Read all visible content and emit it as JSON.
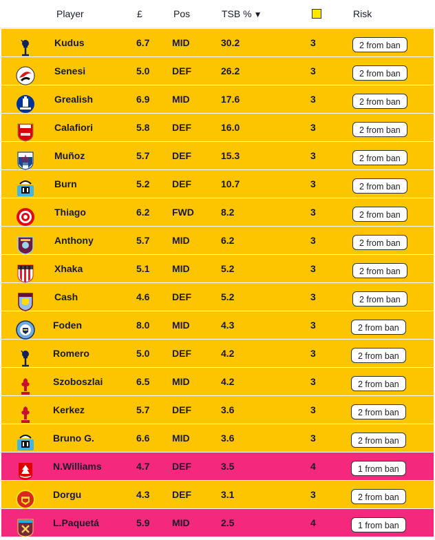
{
  "header": {
    "player": "Player",
    "price": "£",
    "pos": "Pos",
    "tsb": "TSB %",
    "sort_arrow": "▼",
    "risk": "Risk"
  },
  "colors": {
    "yellow_row": "#fdc400",
    "pink_row": "#f4287c",
    "card_yellow": "#ffe600"
  },
  "rows": [
    {
      "club": "tottenham-crest",
      "name": "Kudus",
      "price": "6.7",
      "pos": "MID",
      "tsb": "30.2",
      "cards": "3",
      "risk": "2 from ban",
      "tone": "yellow"
    },
    {
      "club": "bournemouth-crest",
      "name": "Senesi",
      "price": "5.0",
      "pos": "DEF",
      "tsb": "26.2",
      "cards": "3",
      "risk": "2 from ban",
      "tone": "yellow"
    },
    {
      "club": "everton-crest",
      "name": "Grealish",
      "price": "6.9",
      "pos": "MID",
      "tsb": "17.6",
      "cards": "3",
      "risk": "2 from ban",
      "tone": "yellow"
    },
    {
      "club": "arsenal-crest",
      "name": "Calafiori",
      "price": "5.8",
      "pos": "DEF",
      "tsb": "16.0",
      "cards": "3",
      "risk": "2 from ban",
      "tone": "yellow"
    },
    {
      "club": "crystal-palace-crest",
      "name": "Muñoz",
      "price": "5.7",
      "pos": "DEF",
      "tsb": "15.3",
      "cards": "3",
      "risk": "2 from ban",
      "tone": "yellow"
    },
    {
      "club": "newcastle-crest",
      "name": "Burn",
      "price": "5.2",
      "pos": "DEF",
      "tsb": "10.7",
      "cards": "3",
      "risk": "2 from ban",
      "tone": "yellow"
    },
    {
      "club": "brentford-crest",
      "name": "Thiago",
      "price": "6.2",
      "pos": "FWD",
      "tsb": "8.2",
      "cards": "3",
      "risk": "2 from ban",
      "tone": "yellow"
    },
    {
      "club": "burnley-crest",
      "name": "Anthony",
      "price": "5.7",
      "pos": "MID",
      "tsb": "6.2",
      "cards": "3",
      "risk": "2 from ban",
      "tone": "yellow"
    },
    {
      "club": "sunderland-crest",
      "name": "Xhaka",
      "price": "5.1",
      "pos": "MID",
      "tsb": "5.2",
      "cards": "3",
      "risk": "2 from ban",
      "tone": "yellow"
    },
    {
      "club": "aston-villa-crest",
      "name": "Cash",
      "price": "4.6",
      "pos": "DEF",
      "tsb": "5.2",
      "cards": "3",
      "risk": "2 from ban",
      "tone": "yellow"
    },
    {
      "club": "man-city-crest",
      "name": "Foden",
      "price": "8.0",
      "pos": "MID",
      "tsb": "4.3",
      "cards": "3",
      "risk": "2 from ban",
      "tone": "yellow"
    },
    {
      "club": "tottenham-crest",
      "name": "Romero",
      "price": "5.0",
      "pos": "DEF",
      "tsb": "4.2",
      "cards": "3",
      "risk": "2 from ban",
      "tone": "yellow"
    },
    {
      "club": "liverpool-crest",
      "name": "Szoboszlai",
      "price": "6.5",
      "pos": "MID",
      "tsb": "4.2",
      "cards": "3",
      "risk": "2 from ban",
      "tone": "yellow"
    },
    {
      "club": "liverpool-crest",
      "name": "Kerkez",
      "price": "5.7",
      "pos": "DEF",
      "tsb": "3.6",
      "cards": "3",
      "risk": "2 from ban",
      "tone": "yellow"
    },
    {
      "club": "newcastle-crest",
      "name": "Bruno G.",
      "price": "6.6",
      "pos": "MID",
      "tsb": "3.6",
      "cards": "3",
      "risk": "2 from ban",
      "tone": "yellow"
    },
    {
      "club": "nottingham-forest-crest",
      "name": "N.Williams",
      "price": "4.7",
      "pos": "DEF",
      "tsb": "3.5",
      "cards": "4",
      "risk": "1 from ban",
      "tone": "pink"
    },
    {
      "club": "man-united-crest",
      "name": "Dorgu",
      "price": "4.3",
      "pos": "DEF",
      "tsb": "3.1",
      "cards": "3",
      "risk": "2 from ban",
      "tone": "yellow"
    },
    {
      "club": "west-ham-crest",
      "name": "L.Paquetá",
      "price": "5.9",
      "pos": "MID",
      "tsb": "2.5",
      "cards": "4",
      "risk": "1 from ban",
      "tone": "pink"
    }
  ]
}
